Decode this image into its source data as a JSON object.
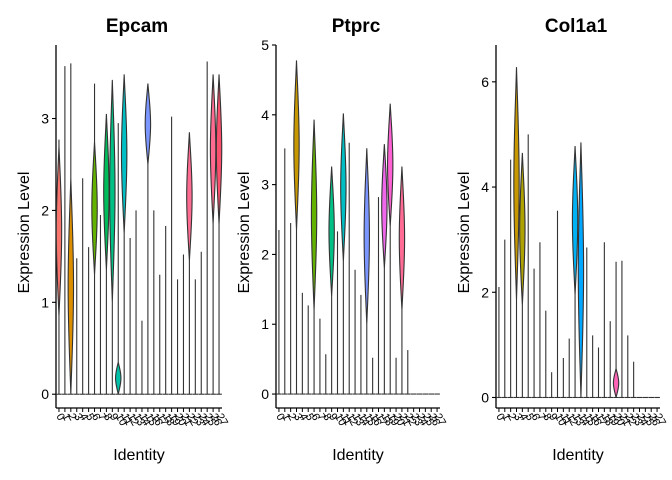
{
  "chart_data": [
    {
      "type": "violin",
      "title": "Epcam",
      "xlabel": "Identity",
      "ylabel": "Expression Level",
      "ylim": [
        -0.15,
        3.8
      ],
      "yticks": [
        0,
        1,
        2,
        3
      ],
      "categories": [
        "0",
        "1",
        "2",
        "3",
        "4",
        "5",
        "6",
        "7",
        "8",
        "9",
        "10",
        "11",
        "12",
        "13",
        "14",
        "15",
        "16",
        "17",
        "18",
        "19",
        "20",
        "21",
        "22",
        "23",
        "24",
        "25",
        "26",
        "27"
      ],
      "max_values": [
        2.77,
        3.57,
        3.6,
        1.48,
        2.35,
        1.6,
        3.38,
        1.95,
        3.05,
        3.42,
        2.95,
        3.48,
        1.7,
        2.0,
        0.8,
        3.38,
        2.0,
        1.3,
        1.83,
        3.02,
        1.25,
        1.52,
        2.85,
        1.25,
        1.55,
        3.62,
        3.48,
        3.48
      ],
      "violin_body": [
        [
          0.85,
          2.7
        ],
        null,
        [
          0,
          2.35
        ],
        null,
        null,
        null,
        [
          1.3,
          2.75
        ],
        null,
        [
          1.35,
          3.05
        ],
        [
          1.0,
          3.42
        ],
        [
          0,
          0.35
        ],
        [
          1.75,
          3.48
        ],
        null,
        null,
        null,
        [
          2.5,
          3.38
        ],
        null,
        null,
        null,
        null,
        null,
        null,
        [
          1.45,
          2.85
        ],
        null,
        null,
        null,
        [
          1.85,
          3.48
        ],
        [
          1.85,
          3.48
        ]
      ]
    },
    {
      "type": "violin",
      "title": "Ptprc",
      "xlabel": "Identity",
      "ylabel": "Expression Level",
      "ylim": [
        -0.2,
        5.0
      ],
      "yticks": [
        0,
        1,
        2,
        3,
        4,
        5
      ],
      "categories": [
        "0",
        "1",
        "2",
        "3",
        "4",
        "5",
        "6",
        "7",
        "8",
        "9",
        "10",
        "11",
        "12",
        "13",
        "14",
        "15",
        "16",
        "17",
        "18",
        "19",
        "20",
        "21",
        "22",
        "23",
        "24",
        "25",
        "26",
        "27"
      ],
      "max_values": [
        2.35,
        3.52,
        2.45,
        4.78,
        1.45,
        1.27,
        3.93,
        1.08,
        0.57,
        3.26,
        2.33,
        4.02,
        3.6,
        1.78,
        1.42,
        3.52,
        0.52,
        2.82,
        3.58,
        4.16,
        0.52,
        3.26,
        0.63,
        0.0,
        0.0,
        0.0,
        0.0,
        0.0
      ],
      "violin_body": [
        null,
        null,
        null,
        [
          2.35,
          4.78
        ],
        null,
        null,
        [
          1.2,
          3.93
        ],
        null,
        null,
        [
          1.4,
          3.26
        ],
        null,
        [
          1.9,
          4.02
        ],
        null,
        null,
        null,
        [
          1.0,
          3.52
        ],
        null,
        null,
        [
          1.8,
          3.58
        ],
        [
          2.4,
          4.16
        ],
        null,
        [
          1.2,
          3.26
        ],
        null,
        null,
        null,
        null,
        null,
        null
      ]
    },
    {
      "type": "violin",
      "title": "Col1a1",
      "xlabel": "Identity",
      "ylabel": "Expression Level",
      "ylim": [
        -0.2,
        6.7
      ],
      "yticks": [
        0,
        2,
        4,
        6
      ],
      "categories": [
        "0",
        "1",
        "2",
        "3",
        "4",
        "5",
        "6",
        "7",
        "8",
        "9",
        "10",
        "11",
        "12",
        "13",
        "14",
        "15",
        "16",
        "17",
        "18",
        "19",
        "20",
        "21",
        "22",
        "23",
        "24",
        "25",
        "26",
        "27"
      ],
      "max_values": [
        2.1,
        3.0,
        4.52,
        6.28,
        4.65,
        5.0,
        2.45,
        2.95,
        1.65,
        0.48,
        3.55,
        0.75,
        1.12,
        4.78,
        4.85,
        2.85,
        1.18,
        0.95,
        2.95,
        1.45,
        2.58,
        2.6,
        1.18,
        0.68,
        0.0,
        0.0,
        0.0,
        0.0
      ],
      "violin_body": [
        null,
        null,
        null,
        [
          1.85,
          6.28
        ],
        [
          1.75,
          4.65
        ],
        null,
        null,
        null,
        null,
        null,
        null,
        null,
        null,
        [
          1.95,
          4.78
        ],
        [
          0,
          4.85
        ],
        null,
        null,
        null,
        null,
        null,
        [
          0,
          0.55
        ],
        null,
        null,
        null,
        null,
        null,
        null,
        null
      ]
    }
  ],
  "colors": [
    "#F8766D",
    "#EC8239",
    "#DB8E00",
    "#C79800",
    "#AEA200",
    "#8FAA00",
    "#64B200",
    "#00B81B",
    "#00BD5C",
    "#00C085",
    "#00C1A7",
    "#00BFC4",
    "#00BADE",
    "#00B2F3",
    "#00A6FF",
    "#7C96FF",
    "#B385FF",
    "#D874FD",
    "#EF67EB",
    "#FD61D3",
    "#FF63B6",
    "#FF6B94",
    "#FF6C91",
    "#F8766D",
    "#E38900",
    "#C49A00",
    "#FF6C91",
    "#F8506D"
  ]
}
